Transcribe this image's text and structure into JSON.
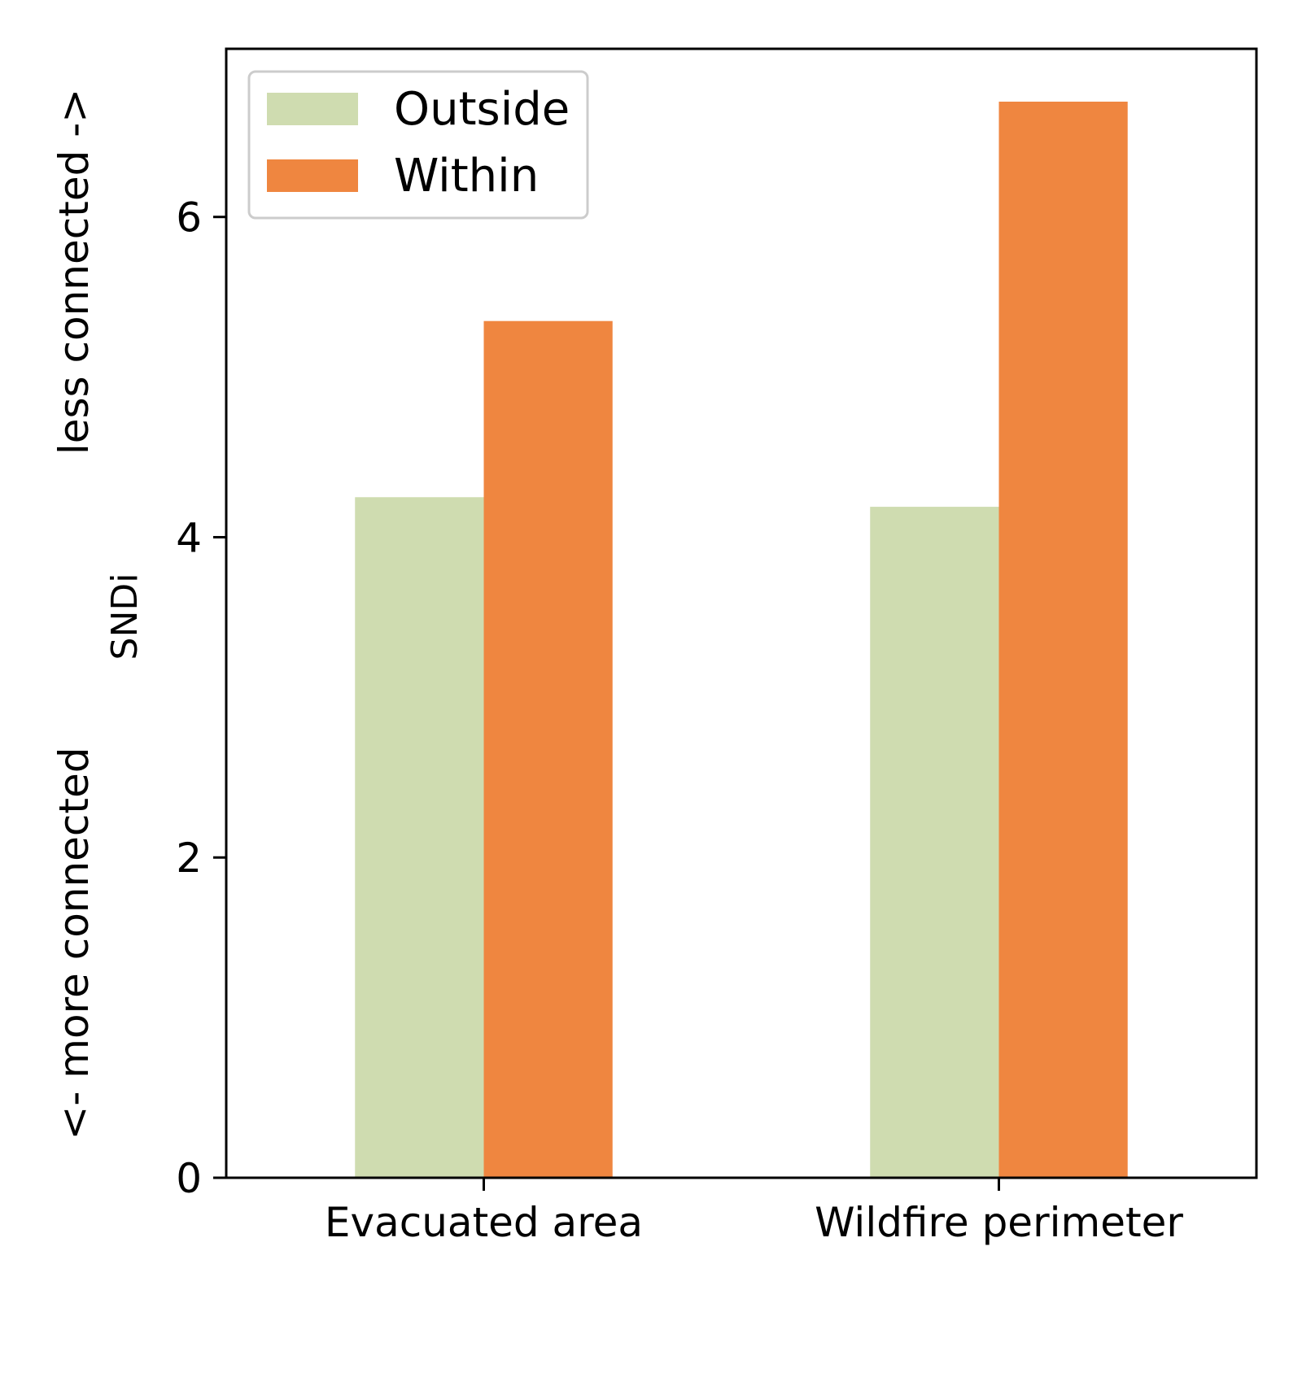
{
  "chart_data": {
    "type": "bar",
    "categories": [
      "Evacuated area",
      "Wildfire perimeter"
    ],
    "series": [
      {
        "name": "Outside",
        "values": [
          4.25,
          4.19
        ],
        "color": "#cfdcb0"
      },
      {
        "name": "Within",
        "values": [
          5.35,
          6.72
        ],
        "color": "#ef8640"
      }
    ],
    "title": "",
    "xlabel": "",
    "ylabel": "SNDi",
    "ylim": [
      0,
      7.05
    ],
    "yticks": [
      0,
      2,
      4,
      6
    ],
    "ytick_labels": [
      "0",
      "2",
      "4",
      "6"
    ],
    "annotations": {
      "top": "less connected ->",
      "bottom": "<- more connected"
    },
    "legend_position": "upper-left",
    "grid": false
  }
}
